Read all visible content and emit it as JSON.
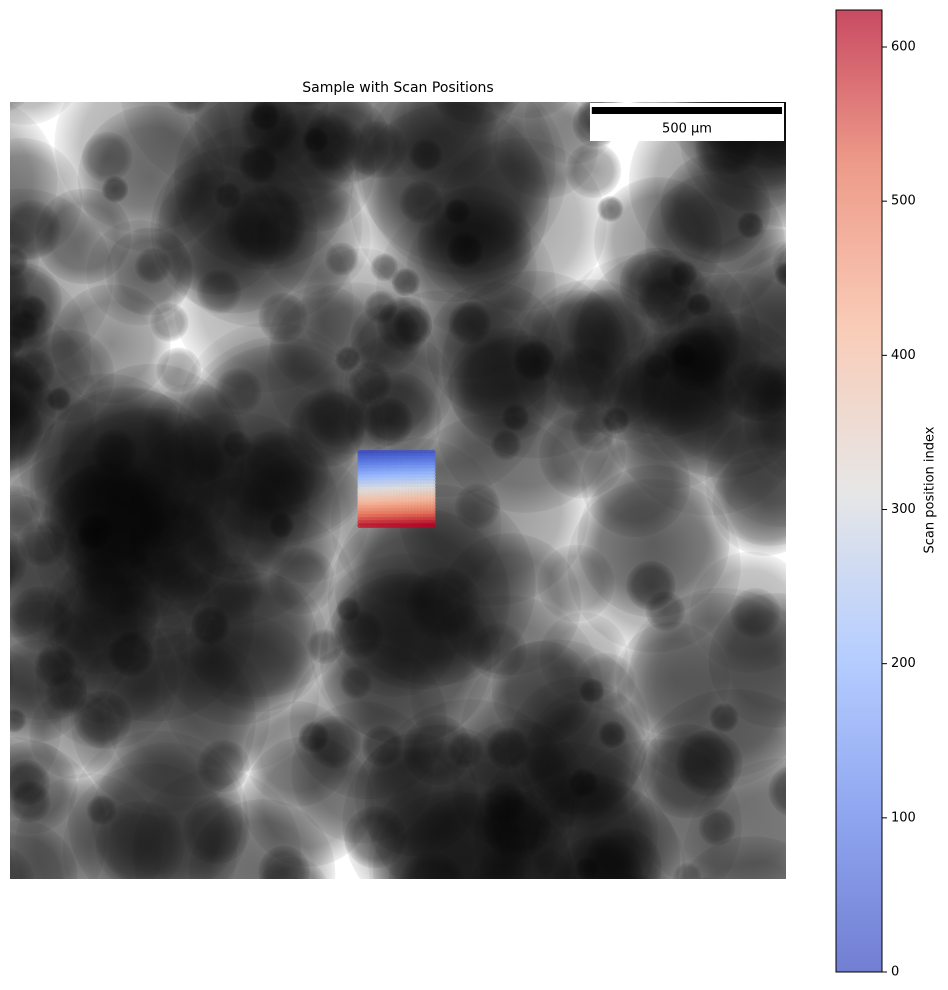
{
  "chart_data": {
    "type": "scatter",
    "title": "Sample with Scan Positions",
    "scale_bar": {
      "label": "500 µm",
      "length": 500
    },
    "xlim": [
      0,
      2040
    ],
    "ylim": [
      0,
      2040
    ],
    "x": [
      920,
      928,
      936,
      944,
      952,
      960,
      968,
      976,
      984,
      992,
      1000,
      1008,
      1016,
      1024,
      1032,
      1040,
      1048,
      1056,
      1064,
      1072,
      1080,
      1088,
      1096,
      1104,
      1112
    ],
    "y": [
      920,
      928,
      936,
      944,
      952,
      960,
      968,
      976,
      984,
      992,
      1000,
      1008,
      1016,
      1024,
      1032,
      1040,
      1048,
      1056,
      1064,
      1072,
      1080,
      1088,
      1096,
      1104,
      1112
    ],
    "colormap": "coolwarm",
    "colorbar": {
      "label": "Scan position index",
      "clim": [
        0,
        624
      ],
      "ticks": [
        0,
        100,
        200,
        300,
        400,
        500,
        600
      ]
    }
  }
}
